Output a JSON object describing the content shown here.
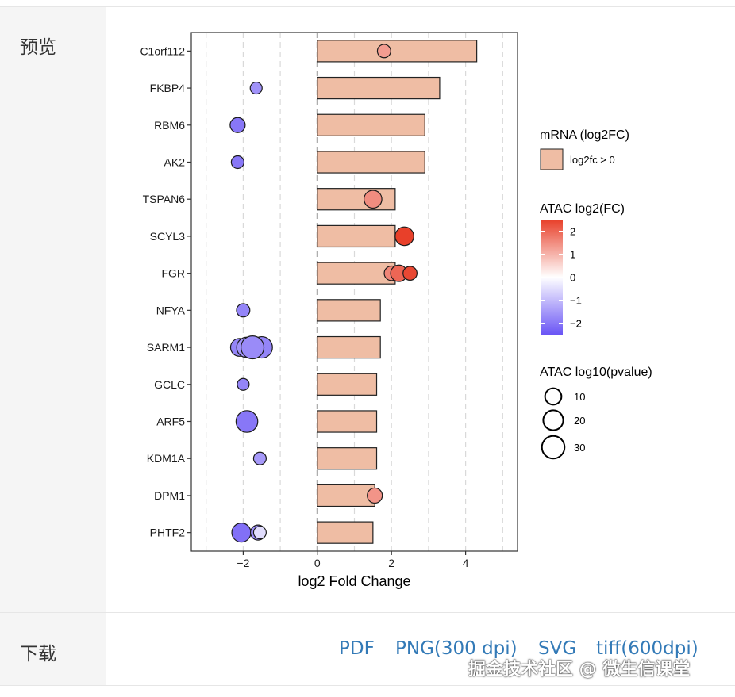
{
  "panel": {
    "preview_label": "预览",
    "download_label": "下载"
  },
  "downloads": [
    {
      "label": "PDF"
    },
    {
      "label": "PNG(300 dpi)"
    },
    {
      "label": "SVG"
    },
    {
      "label": "tiff(600dpi)"
    }
  ],
  "watermark": "掘金技术社区 @ 微生信课堂",
  "chart_data": {
    "type": "bar",
    "xlabel": "log2 Fold Change",
    "xlim": [
      -3.4,
      5.4
    ],
    "x_ticks": [
      -2,
      0,
      2,
      4
    ],
    "x_tick_labels": [
      "−2",
      "0",
      "2",
      "4"
    ],
    "grid": true,
    "categories": [
      "C1orf112",
      "FKBP4",
      "RBM6",
      "AK2",
      "TSPAN6",
      "SCYL3",
      "FGR",
      "NFYA",
      "SARM1",
      "GCLC",
      "ARF5",
      "KDM1A",
      "DPM1",
      "PHTF2"
    ],
    "bar_series": {
      "name": "log2fc > 0",
      "values": [
        4.3,
        3.3,
        2.9,
        2.9,
        2.1,
        2.1,
        2.1,
        1.7,
        1.7,
        1.6,
        1.6,
        1.6,
        1.55,
        1.5
      ]
    },
    "atac_points": [
      {
        "gene": "C1orf112",
        "x": 1.8,
        "fc": 1.3,
        "p": 6
      },
      {
        "gene": "FKBP4",
        "x": -1.65,
        "fc": -1.6,
        "p": 4
      },
      {
        "gene": "RBM6",
        "x": -2.15,
        "fc": -2.0,
        "p": 9
      },
      {
        "gene": "AK2",
        "x": -2.15,
        "fc": -2.0,
        "p": 5
      },
      {
        "gene": "TSPAN6",
        "x": 1.5,
        "fc": 1.5,
        "p": 15
      },
      {
        "gene": "SCYL3",
        "x": 2.35,
        "fc": 2.5,
        "p": 17
      },
      {
        "gene": "FGR",
        "x": 2.0,
        "fc": 1.6,
        "p": 8
      },
      {
        "gene": "FGR",
        "x": 2.2,
        "fc": 2.0,
        "p": 12
      },
      {
        "gene": "FGR",
        "x": 2.5,
        "fc": 2.4,
        "p": 7
      },
      {
        "gene": "NFYA",
        "x": -2.0,
        "fc": -1.8,
        "p": 6
      },
      {
        "gene": "SARM1",
        "x": -2.1,
        "fc": -1.8,
        "p": 15
      },
      {
        "gene": "SARM1",
        "x": -1.9,
        "fc": -1.6,
        "p": 22
      },
      {
        "gene": "SARM1",
        "x": -1.5,
        "fc": -1.8,
        "p": 25
      },
      {
        "gene": "SARM1",
        "x": -1.75,
        "fc": -1.7,
        "p": 30
      },
      {
        "gene": "GCLC",
        "x": -2.0,
        "fc": -1.8,
        "p": 4
      },
      {
        "gene": "ARF5",
        "x": -1.9,
        "fc": -2.0,
        "p": 26
      },
      {
        "gene": "KDM1A",
        "x": -1.55,
        "fc": -1.5,
        "p": 5
      },
      {
        "gene": "DPM1",
        "x": 1.55,
        "fc": 1.4,
        "p": 9
      },
      {
        "gene": "PHTF2",
        "x": -2.05,
        "fc": -2.1,
        "p": 18
      },
      {
        "gene": "PHTF2",
        "x": -1.6,
        "fc": -1.7,
        "p": 9
      },
      {
        "gene": "PHTF2",
        "x": -1.55,
        "fc": -0.5,
        "p": 5
      }
    ],
    "legend": {
      "placement": "right",
      "mrna_title": "mRNA (log2FC)",
      "mrna_item": "log2fc > 0",
      "color_title": "ATAC log2(FC)",
      "color_ticks": [
        2,
        1,
        0,
        -1,
        -2
      ],
      "color_tick_labels": [
        "2",
        "1",
        "0",
        "−1",
        "−2"
      ],
      "size_title": "ATAC log10(pvalue)",
      "size_ticks": [
        10,
        20,
        30
      ],
      "size_tick_labels": [
        "10",
        "20",
        "30"
      ]
    },
    "colors": {
      "bar_fill": "#efbda4",
      "bar_stroke": "#222222",
      "pos": "#e8402a",
      "neutral": "#ffffff",
      "neg": "#6a55f5"
    }
  }
}
